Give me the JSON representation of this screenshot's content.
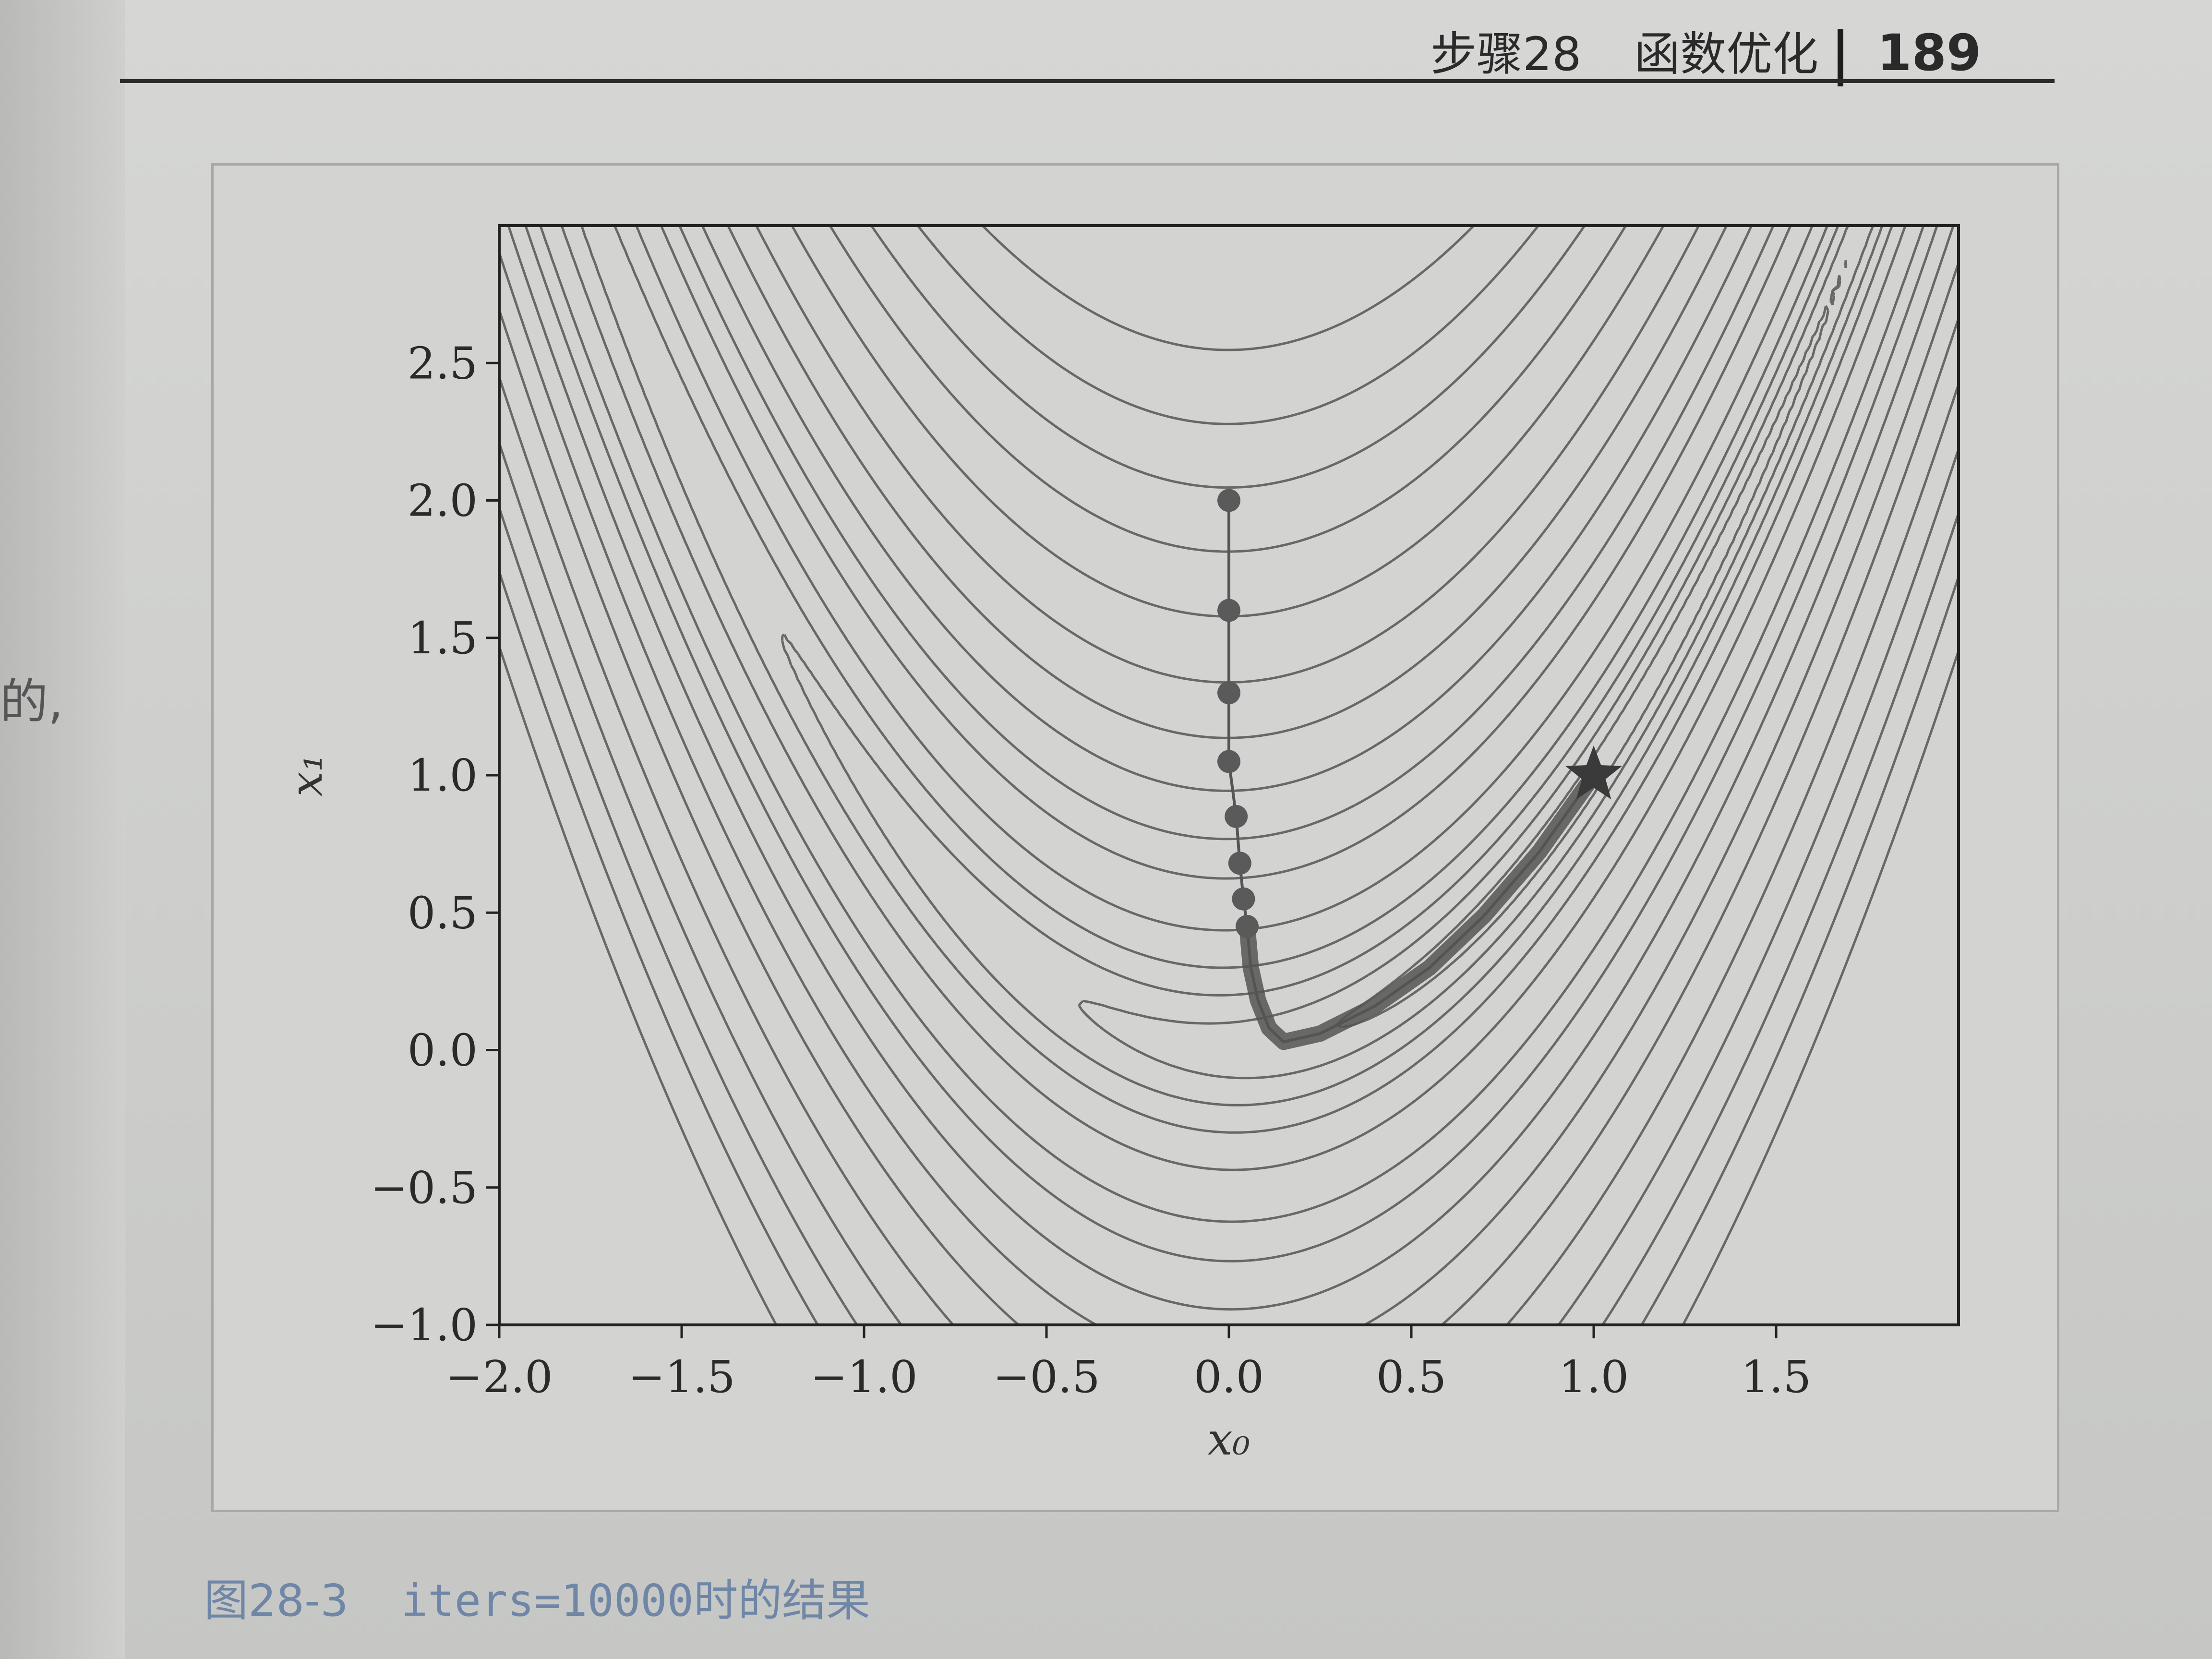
{
  "running_head": {
    "chapter": "步骤28",
    "title": "函数优化",
    "page_number": "189"
  },
  "margin_fragment": "的,",
  "caption": {
    "figure": "图28-3",
    "text": "iters=10000时的结果"
  },
  "colors": {
    "contour": "#555555",
    "path": "#555555",
    "marker": "#5a5a5a",
    "axis": "#222222"
  },
  "chart_data": {
    "type": "line",
    "title": "",
    "xlabel": "x₀",
    "ylabel": "x₁",
    "xlim": [
      -2.0,
      2.0
    ],
    "ylim": [
      -1.0,
      3.0
    ],
    "xticks": [
      -2.0,
      -1.5,
      -1.0,
      -0.5,
      0.0,
      0.5,
      1.0,
      1.5
    ],
    "yticks": [
      -1.0,
      -0.5,
      0.0,
      0.5,
      1.0,
      1.5,
      2.0,
      2.5
    ],
    "xtick_labels": [
      "−2.0",
      "−1.5",
      "−1.0",
      "−0.5",
      "0.0",
      "0.5",
      "1.0",
      "1.5"
    ],
    "ytick_labels": [
      "−1.0",
      "−0.5",
      "0.0",
      "0.5",
      "1.0",
      "1.5",
      "2.0",
      "2.5"
    ],
    "contour_function": "rosenbrock",
    "contour_levels": [
      0.5,
      2,
      5,
      10,
      20,
      40,
      60,
      90,
      130,
      180,
      250,
      330,
      420,
      520,
      650
    ],
    "path_markers": [
      [
        0.0,
        2.0
      ],
      [
        0.0,
        1.6
      ],
      [
        0.0,
        1.3
      ],
      [
        0.0,
        1.05
      ],
      [
        0.02,
        0.85
      ],
      [
        0.03,
        0.68
      ],
      [
        0.04,
        0.55
      ],
      [
        0.05,
        0.45
      ]
    ],
    "path_curve": [
      [
        0.05,
        0.45
      ],
      [
        0.06,
        0.3
      ],
      [
        0.08,
        0.18
      ],
      [
        0.11,
        0.08
      ],
      [
        0.15,
        0.03
      ],
      [
        0.25,
        0.06
      ],
      [
        0.4,
        0.16
      ],
      [
        0.55,
        0.3
      ],
      [
        0.7,
        0.49
      ],
      [
        0.85,
        0.72
      ],
      [
        1.0,
        1.0
      ]
    ],
    "grid": false
  }
}
